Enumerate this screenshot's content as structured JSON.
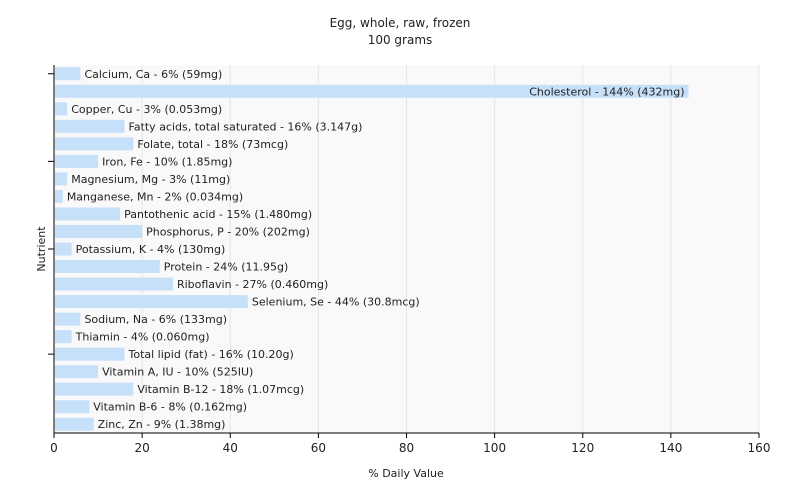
{
  "chart_data": {
    "type": "bar",
    "orientation": "horizontal",
    "title": "Egg, whole, raw, frozen",
    "subtitle": "100 grams",
    "xlabel": "% Daily Value",
    "ylabel": "Nutrient",
    "xlim": [
      0,
      160
    ],
    "xticks": [
      0,
      20,
      40,
      60,
      80,
      100,
      120,
      140,
      160
    ],
    "grid": true,
    "bar_color": "#c6e0fa",
    "categories": [
      "Calcium, Ca",
      "Cholesterol",
      "Copper, Cu",
      "Fatty acids, total saturated",
      "Folate, total",
      "Iron, Fe",
      "Magnesium, Mg",
      "Manganese, Mn",
      "Pantothenic acid",
      "Phosphorus, P",
      "Potassium, K",
      "Protein",
      "Riboflavin",
      "Selenium, Se",
      "Sodium, Na",
      "Thiamin",
      "Total lipid (fat)",
      "Vitamin A, IU",
      "Vitamin B-12",
      "Vitamin B-6",
      "Zinc, Zn"
    ],
    "values": [
      6,
      144,
      3,
      16,
      18,
      10,
      3,
      2,
      15,
      20,
      4,
      24,
      27,
      44,
      6,
      4,
      16,
      10,
      18,
      8,
      9
    ],
    "labels": [
      "Calcium, Ca - 6% (59mg)",
      "Cholesterol - 144% (432mg)",
      "Copper, Cu - 3% (0.053mg)",
      "Fatty acids, total saturated - 16% (3.147g)",
      "Folate, total - 18% (73mcg)",
      "Iron, Fe - 10% (1.85mg)",
      "Magnesium, Mg - 3% (11mg)",
      "Manganese, Mn - 2% (0.034mg)",
      "Pantothenic acid - 15% (1.480mg)",
      "Phosphorus, P - 20% (202mg)",
      "Potassium, K - 4% (130mg)",
      "Protein - 24% (11.95g)",
      "Riboflavin - 27% (0.460mg)",
      "Selenium, Se - 44% (30.8mcg)",
      "Sodium, Na - 6% (133mg)",
      "Thiamin - 4% (0.060mg)",
      "Total lipid (fat) - 16% (10.20g)",
      "Vitamin A, IU - 10% (525IU)",
      "Vitamin B-12 - 18% (1.07mcg)",
      "Vitamin B-6 - 8% (0.162mg)",
      "Zinc, Zn - 9% (1.38mg)"
    ]
  }
}
